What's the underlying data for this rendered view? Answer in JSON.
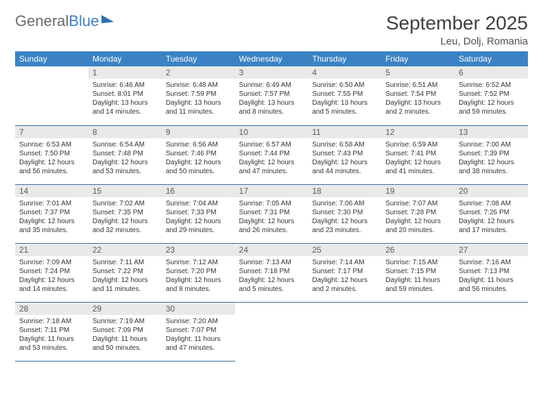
{
  "logo": {
    "text1": "General",
    "text2": "Blue"
  },
  "title": "September 2025",
  "subtitle": "Leu, Dolj, Romania",
  "colors": {
    "header_bg": "#3b82c4",
    "header_text": "#ffffff",
    "daynum_bg": "#e9e9e9",
    "daynum_text": "#5a5a5a",
    "cell_border": "#3b6fa0",
    "body_text": "#333333",
    "logo_gray": "#6a6a6a",
    "logo_blue": "#3b7fc4"
  },
  "weekdays": [
    "Sunday",
    "Monday",
    "Tuesday",
    "Wednesday",
    "Thursday",
    "Friday",
    "Saturday"
  ],
  "start_offset": 1,
  "days": [
    {
      "n": "1",
      "sr": "6:46 AM",
      "ss": "8:01 PM",
      "dl": "13 hours and 14 minutes."
    },
    {
      "n": "2",
      "sr": "6:48 AM",
      "ss": "7:59 PM",
      "dl": "13 hours and 11 minutes."
    },
    {
      "n": "3",
      "sr": "6:49 AM",
      "ss": "7:57 PM",
      "dl": "13 hours and 8 minutes."
    },
    {
      "n": "4",
      "sr": "6:50 AM",
      "ss": "7:55 PM",
      "dl": "13 hours and 5 minutes."
    },
    {
      "n": "5",
      "sr": "6:51 AM",
      "ss": "7:54 PM",
      "dl": "13 hours and 2 minutes."
    },
    {
      "n": "6",
      "sr": "6:52 AM",
      "ss": "7:52 PM",
      "dl": "12 hours and 59 minutes."
    },
    {
      "n": "7",
      "sr": "6:53 AM",
      "ss": "7:50 PM",
      "dl": "12 hours and 56 minutes."
    },
    {
      "n": "8",
      "sr": "6:54 AM",
      "ss": "7:48 PM",
      "dl": "12 hours and 53 minutes."
    },
    {
      "n": "9",
      "sr": "6:56 AM",
      "ss": "7:46 PM",
      "dl": "12 hours and 50 minutes."
    },
    {
      "n": "10",
      "sr": "6:57 AM",
      "ss": "7:44 PM",
      "dl": "12 hours and 47 minutes."
    },
    {
      "n": "11",
      "sr": "6:58 AM",
      "ss": "7:43 PM",
      "dl": "12 hours and 44 minutes."
    },
    {
      "n": "12",
      "sr": "6:59 AM",
      "ss": "7:41 PM",
      "dl": "12 hours and 41 minutes."
    },
    {
      "n": "13",
      "sr": "7:00 AM",
      "ss": "7:39 PM",
      "dl": "12 hours and 38 minutes."
    },
    {
      "n": "14",
      "sr": "7:01 AM",
      "ss": "7:37 PM",
      "dl": "12 hours and 35 minutes."
    },
    {
      "n": "15",
      "sr": "7:02 AM",
      "ss": "7:35 PM",
      "dl": "12 hours and 32 minutes."
    },
    {
      "n": "16",
      "sr": "7:04 AM",
      "ss": "7:33 PM",
      "dl": "12 hours and 29 minutes."
    },
    {
      "n": "17",
      "sr": "7:05 AM",
      "ss": "7:31 PM",
      "dl": "12 hours and 26 minutes."
    },
    {
      "n": "18",
      "sr": "7:06 AM",
      "ss": "7:30 PM",
      "dl": "12 hours and 23 minutes."
    },
    {
      "n": "19",
      "sr": "7:07 AM",
      "ss": "7:28 PM",
      "dl": "12 hours and 20 minutes."
    },
    {
      "n": "20",
      "sr": "7:08 AM",
      "ss": "7:26 PM",
      "dl": "12 hours and 17 minutes."
    },
    {
      "n": "21",
      "sr": "7:09 AM",
      "ss": "7:24 PM",
      "dl": "12 hours and 14 minutes."
    },
    {
      "n": "22",
      "sr": "7:11 AM",
      "ss": "7:22 PM",
      "dl": "12 hours and 11 minutes."
    },
    {
      "n": "23",
      "sr": "7:12 AM",
      "ss": "7:20 PM",
      "dl": "12 hours and 8 minutes."
    },
    {
      "n": "24",
      "sr": "7:13 AM",
      "ss": "7:18 PM",
      "dl": "12 hours and 5 minutes."
    },
    {
      "n": "25",
      "sr": "7:14 AM",
      "ss": "7:17 PM",
      "dl": "12 hours and 2 minutes."
    },
    {
      "n": "26",
      "sr": "7:15 AM",
      "ss": "7:15 PM",
      "dl": "11 hours and 59 minutes."
    },
    {
      "n": "27",
      "sr": "7:16 AM",
      "ss": "7:13 PM",
      "dl": "11 hours and 56 minutes."
    },
    {
      "n": "28",
      "sr": "7:18 AM",
      "ss": "7:11 PM",
      "dl": "11 hours and 53 minutes."
    },
    {
      "n": "29",
      "sr": "7:19 AM",
      "ss": "7:09 PM",
      "dl": "11 hours and 50 minutes."
    },
    {
      "n": "30",
      "sr": "7:20 AM",
      "ss": "7:07 PM",
      "dl": "11 hours and 47 minutes."
    }
  ],
  "labels": {
    "sunrise": "Sunrise:",
    "sunset": "Sunset:",
    "daylight": "Daylight:"
  }
}
